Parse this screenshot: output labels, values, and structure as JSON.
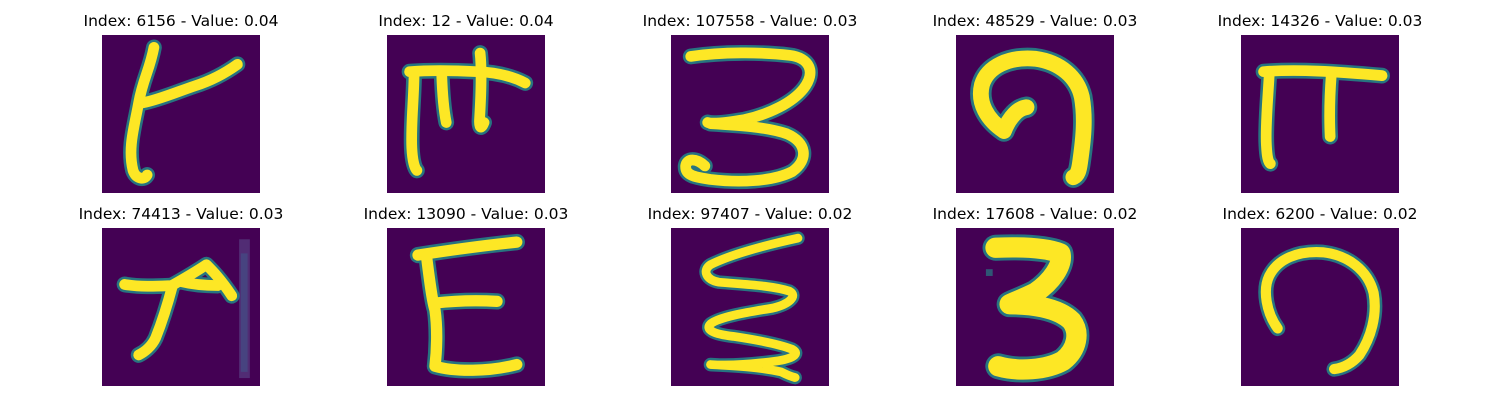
{
  "figure": {
    "background": "#ffffff",
    "colormap": "viridis",
    "colors": {
      "background_cell": "#440154",
      "stroke_core": "#fde725",
      "stroke_edge": "#35b779",
      "stroke_fringe": "#21918c"
    },
    "panels": [
      {
        "title": "Index: 6156 - Value: 0.04",
        "glyph_description": "handwritten character resembling a tilted 'k' with a long vertical stroke",
        "index": 6156,
        "value": 0.04
      },
      {
        "title": "Index: 12 - Value: 0.04",
        "glyph_description": "handwritten character with a top bar and two descenders, resembling 'ff'",
        "index": 12,
        "value": 0.04
      },
      {
        "title": "Index: 107558 - Value: 0.03",
        "glyph_description": "handwritten character resembling the digit 3",
        "index": 107558,
        "value": 0.03
      },
      {
        "title": "Index: 48529 - Value: 0.03",
        "glyph_description": "handwritten character resembling an inverted 'U' hook",
        "index": 48529,
        "value": 0.03
      },
      {
        "title": "Index: 14326 - Value: 0.03",
        "glyph_description": "handwritten character resembling the letter pi",
        "index": 14326,
        "value": 0.03
      },
      {
        "title": "Index: 74413 - Value: 0.03",
        "glyph_description": "handwritten arrow-like stroke with faint vertical line at right",
        "index": 74413,
        "value": 0.03
      },
      {
        "title": "Index: 13090 - Value: 0.03",
        "glyph_description": "handwritten character resembling the letter E",
        "index": 13090,
        "value": 0.03
      },
      {
        "title": "Index: 97407 - Value: 0.02",
        "glyph_description": "handwritten zigzag stroke resembling a stacked 'S'",
        "index": 97407,
        "value": 0.02
      },
      {
        "title": "Index: 17608 - Value: 0.02",
        "glyph_description": "bold handwritten character resembling the digit 3",
        "index": 17608,
        "value": 0.02
      },
      {
        "title": "Index: 6200 - Value: 0.02",
        "glyph_description": "handwritten character resembling an inverted 'U' hook",
        "index": 6200,
        "value": 0.02
      }
    ]
  }
}
